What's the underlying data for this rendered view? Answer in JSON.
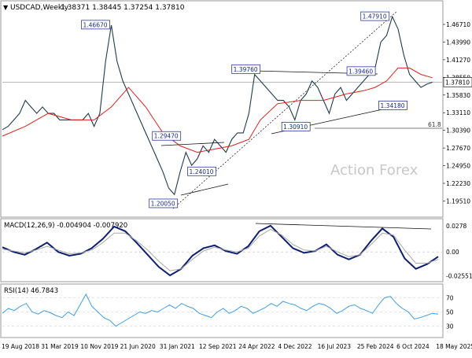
{
  "header": {
    "symbol_title": "USDCAD,Weekly",
    "ohlc": "1.38371 1.38445 1.37254 1.37810"
  },
  "watermark": "Action Forex",
  "colors": {
    "price": "#1f3b4d",
    "ma": "#e0201b",
    "macd_main": "#0f1f6f",
    "macd_signal": "#a8a8a8",
    "rsi": "#3f9ee8",
    "box_border": "#2e3a9f",
    "trendline": "#111111",
    "level_line": "#b0b0b0",
    "fib_line": "#555555"
  },
  "chart_data": [
    {
      "type": "line",
      "panel": "price",
      "ylim": [
        1.175,
        1.495
      ],
      "y_ticks": [
        "1.46710",
        "1.43990",
        "1.41270",
        "1.38550",
        "1.35830",
        "1.33110",
        "1.30390",
        "1.27670",
        "1.24950",
        "1.22230",
        "1.19510"
      ],
      "current_price_label": "1.37810",
      "x_labels": [
        "19 Aug 2018",
        "31 Mar 2019",
        "10 Nov 2019",
        "21 Jun 2020",
        "31 Jan 2021",
        "12 Sep 2021",
        "24 Apr 2022",
        "4 Dec 2022",
        "16 Jul 2023",
        "25 Feb 2024",
        "6 Oct 2024",
        "18 May 2025"
      ],
      "series": [
        {
          "kind": "price",
          "points": [
            [
              0,
              1.305
            ],
            [
              0.5,
              1.31
            ],
            [
              1,
              1.32
            ],
            [
              1.5,
              1.33
            ],
            [
              2,
              1.35
            ],
            [
              2.5,
              1.34
            ],
            [
              3,
              1.33
            ],
            [
              3.5,
              1.34
            ],
            [
              4,
              1.33
            ],
            [
              4.5,
              1.33
            ],
            [
              5,
              1.32
            ],
            [
              5.5,
              1.32
            ],
            [
              6,
              1.32
            ],
            [
              6.5,
              1.32
            ],
            [
              7,
              1.32
            ],
            [
              7.5,
              1.33
            ],
            [
              8,
              1.31
            ],
            [
              8.5,
              1.33
            ],
            [
              9,
              1.41
            ],
            [
              9.5,
              1.466
            ],
            [
              10,
              1.41
            ],
            [
              10.5,
              1.38
            ],
            [
              11,
              1.36
            ],
            [
              11.5,
              1.34
            ],
            [
              12,
              1.32
            ],
            [
              12.5,
              1.3
            ],
            [
              13,
              1.28
            ],
            [
              13.5,
              1.26
            ],
            [
              14,
              1.24
            ],
            [
              14.5,
              1.215
            ],
            [
              15,
              1.205
            ],
            [
              15.5,
              1.24
            ],
            [
              16,
              1.27
            ],
            [
              16.5,
              1.25
            ],
            [
              17,
              1.26
            ],
            [
              17.5,
              1.28
            ],
            [
              18,
              1.27
            ],
            [
              18.5,
              1.29
            ],
            [
              19,
              1.28
            ],
            [
              19.5,
              1.27
            ],
            [
              20,
              1.29
            ],
            [
              20.5,
              1.3
            ],
            [
              21,
              1.3
            ],
            [
              21.5,
              1.33
            ],
            [
              22,
              1.39
            ],
            [
              22.5,
              1.38
            ],
            [
              23,
              1.37
            ],
            [
              23.5,
              1.36
            ],
            [
              24,
              1.35
            ],
            [
              24.5,
              1.35
            ],
            [
              25,
              1.34
            ],
            [
              25.5,
              1.32
            ],
            [
              26,
              1.35
            ],
            [
              26.5,
              1.36
            ],
            [
              27,
              1.38
            ],
            [
              27.5,
              1.37
            ],
            [
              28,
              1.35
            ],
            [
              28.5,
              1.33
            ],
            [
              29,
              1.36
            ],
            [
              29.5,
              1.37
            ],
            [
              30,
              1.35
            ],
            [
              30.5,
              1.36
            ],
            [
              31,
              1.37
            ],
            [
              31.5,
              1.38
            ],
            [
              32,
              1.39
            ],
            [
              32.5,
              1.4
            ],
            [
              33,
              1.44
            ],
            [
              33.5,
              1.45
            ],
            [
              34,
              1.479
            ],
            [
              34.5,
              1.46
            ],
            [
              35,
              1.42
            ],
            [
              35.5,
              1.39
            ],
            [
              36,
              1.38
            ],
            [
              36.5,
              1.37
            ],
            [
              37,
              1.375
            ],
            [
              37.5,
              1.378
            ]
          ]
        },
        {
          "kind": "moving_average",
          "points": [
            [
              0,
              1.295
            ],
            [
              2,
              1.31
            ],
            [
              4,
              1.33
            ],
            [
              6,
              1.32
            ],
            [
              8,
              1.32
            ],
            [
              9.5,
              1.34
            ],
            [
              11,
              1.37
            ],
            [
              12.5,
              1.34
            ],
            [
              14,
              1.3
            ],
            [
              15.5,
              1.28
            ],
            [
              17,
              1.27
            ],
            [
              18.5,
              1.275
            ],
            [
              20,
              1.28
            ],
            [
              21.5,
              1.29
            ],
            [
              22.5,
              1.32
            ],
            [
              24,
              1.345
            ],
            [
              26,
              1.35
            ],
            [
              28,
              1.35
            ],
            [
              30,
              1.36
            ],
            [
              31.5,
              1.365
            ],
            [
              32.5,
              1.37
            ],
            [
              33.5,
              1.38
            ],
            [
              34.5,
              1.4
            ],
            [
              35.5,
              1.4
            ],
            [
              36.5,
              1.39
            ],
            [
              37.5,
              1.385
            ]
          ]
        }
      ],
      "annotations": [
        {
          "label": "1.46670",
          "x": 9.5,
          "y": 1.4667
        },
        {
          "label": "1.39760",
          "x": 22.2,
          "y": 1.3976
        },
        {
          "label": "1.39460",
          "x": 29.5,
          "y": 1.3946
        },
        {
          "label": "1.47910",
          "x": 34,
          "y": 1.4791
        },
        {
          "label": "1.34180",
          "x": 32,
          "y": 1.3418
        },
        {
          "label": "1.30910",
          "x": 24.5,
          "y": 1.3091
        },
        {
          "label": "1.29470",
          "x": 15,
          "y": 1.2947
        },
        {
          "label": "1.24010",
          "x": 16.5,
          "y": 1.2401
        },
        {
          "label": "1.20050",
          "x": 15,
          "y": 1.2005
        }
      ],
      "fib_label": "61.8",
      "fib_level": 1.3071,
      "horizontal_level": 1.3781
    },
    {
      "type": "line",
      "panel": "macd",
      "title": "MACD(12,26,9) -0.004904 -0.007920",
      "ylim": [
        -0.03,
        0.032
      ],
      "y_ticks": [
        "0.0278",
        "0.00",
        "-0.025511"
      ],
      "series": [
        {
          "kind": "macd_main",
          "values": [
            0.005,
            0.0,
            -0.003,
            0.003,
            0.01,
            0.0,
            -0.004,
            -0.002,
            0.004,
            0.014,
            0.027,
            0.022,
            0.01,
            -0.003,
            -0.016,
            -0.025,
            -0.018,
            -0.004,
            0.004,
            0.007,
            0.001,
            -0.002,
            0.006,
            0.022,
            0.028,
            0.016,
            0.004,
            -0.001,
            0.001,
            0.008,
            -0.003,
            -0.008,
            -0.003,
            0.012,
            0.025,
            0.016,
            -0.007,
            -0.018,
            -0.013,
            -0.005
          ]
        },
        {
          "kind": "signal",
          "values": [
            0.003,
            0.001,
            -0.001,
            0.002,
            0.006,
            0.002,
            -0.002,
            -0.001,
            0.002,
            0.01,
            0.02,
            0.02,
            0.012,
            0.002,
            -0.01,
            -0.02,
            -0.018,
            -0.008,
            0.001,
            0.005,
            0.002,
            0.0,
            0.004,
            0.017,
            0.024,
            0.018,
            0.008,
            0.002,
            0.001,
            0.006,
            0.0,
            -0.005,
            -0.003,
            0.008,
            0.02,
            0.018,
            0.002,
            -0.012,
            -0.012,
            -0.008
          ]
        }
      ]
    },
    {
      "type": "line",
      "panel": "rsi",
      "title": "RSI(14) 46.7843",
      "ylim": [
        15,
        85
      ],
      "y_ticks": [
        "70",
        "50",
        "30"
      ],
      "series": [
        {
          "kind": "rsi",
          "values": [
            48,
            55,
            52,
            58,
            62,
            50,
            47,
            52,
            49,
            45,
            42,
            50,
            45,
            60,
            75,
            58,
            50,
            42,
            38,
            30,
            35,
            40,
            45,
            50,
            48,
            52,
            50,
            55,
            60,
            55,
            62,
            58,
            55,
            48,
            45,
            42,
            50,
            55,
            48,
            52,
            58,
            55,
            48,
            52,
            56,
            62,
            58,
            65,
            62,
            60,
            55,
            52,
            58,
            62,
            60,
            55,
            48,
            52,
            58,
            60,
            55,
            52,
            48,
            60,
            70,
            72,
            62,
            55,
            50,
            40,
            42,
            45,
            48,
            47
          ]
        }
      ]
    }
  ]
}
